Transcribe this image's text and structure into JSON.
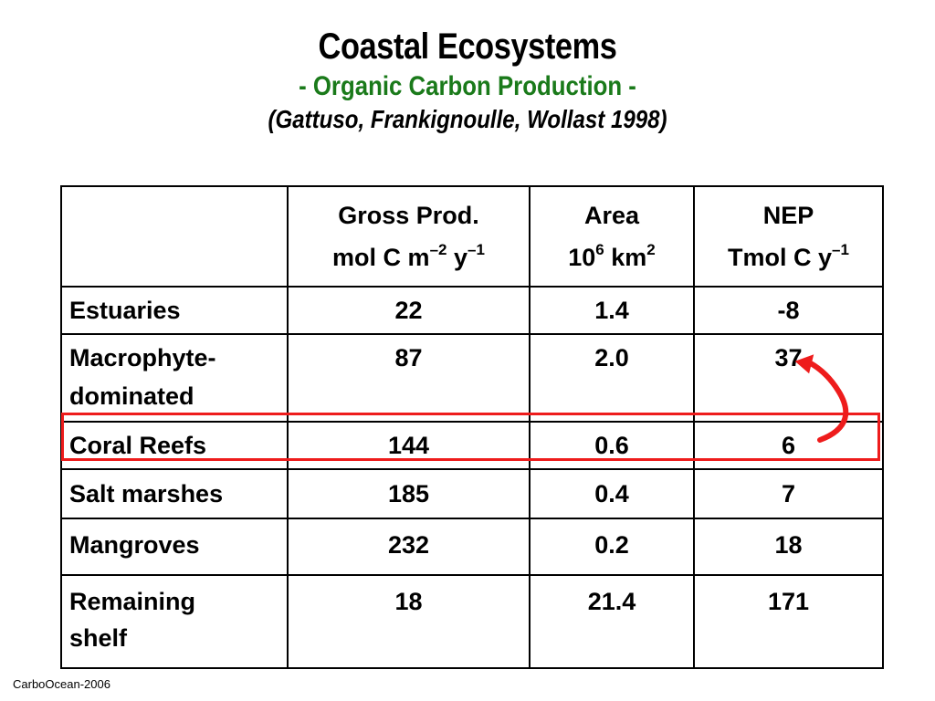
{
  "title": "Coastal Ecosystems",
  "subtitle": "- Organic Carbon Production -",
  "citation": "(Gattuso, Frankignoulle, Wollast 1998)",
  "table": {
    "headers": [
      {
        "line1": "",
        "line2": "",
        "sup1": "",
        "mid": "",
        "sup2": ""
      },
      {
        "line1": "Gross Prod.",
        "line2": "mol C m",
        "sup1": "–2",
        "mid": " y",
        "sup2": "–1"
      },
      {
        "line1": "Area",
        "line2": "10",
        "sup1": "6",
        "mid": " km",
        "sup2": "2"
      },
      {
        "line1": "NEP",
        "line2": "Tmol C y",
        "sup1": "–1",
        "mid": "",
        "sup2": ""
      }
    ],
    "rows": [
      {
        "label_line1": "Estuaries",
        "label_line2": "",
        "gross": "22",
        "area": "1.4",
        "nep": "-8"
      },
      {
        "label_line1": "Macrophyte-",
        "label_line2": "dominated",
        "gross": "87",
        "area": "2.0",
        "nep": "37"
      },
      {
        "label_line1": "Coral Reefs",
        "label_line2": "",
        "gross": "144",
        "area": "0.6",
        "nep": "6"
      },
      {
        "label_line1": "Salt marshes",
        "label_line2": "",
        "gross": "185",
        "area": "0.4",
        "nep": "7"
      },
      {
        "label_line1": "Mangroves",
        "label_line2": "",
        "gross": "232",
        "area": "0.2",
        "nep": "18"
      },
      {
        "label_line1": "Remaining",
        "label_line2": "shelf",
        "gross": "18",
        "area": "21.4",
        "nep": "171"
      }
    ]
  },
  "colors": {
    "subtitle": "#1a7a1a",
    "highlight": "#ee1c1c"
  },
  "annotation": {
    "highlighted_row": "Coral Reefs",
    "arrow_icon": "curved-arrow-icon"
  },
  "footer": "CarboOcean-2006"
}
